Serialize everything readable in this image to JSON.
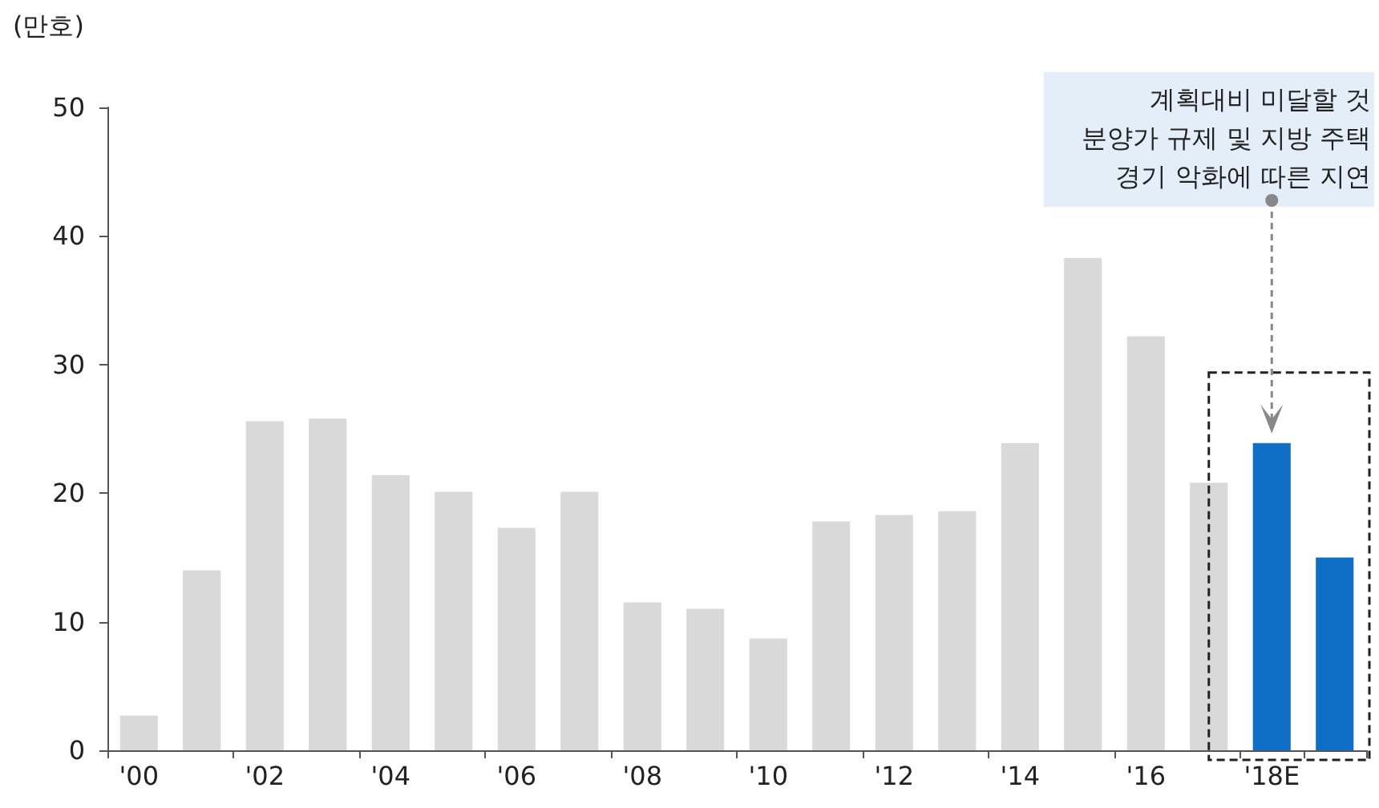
{
  "chart_data": {
    "type": "bar",
    "ylabel": "(만호)",
    "categories": [
      "'00",
      null,
      "'02",
      null,
      "'04",
      null,
      "'06",
      null,
      "'08",
      null,
      "'10",
      null,
      "'12",
      null,
      "'14",
      null,
      "'16",
      null,
      "'18E",
      null
    ],
    "values": [
      2.7,
      14.0,
      25.6,
      25.8,
      21.4,
      20.1,
      17.3,
      20.1,
      11.5,
      11.0,
      8.7,
      17.8,
      18.3,
      18.6,
      23.9,
      38.3,
      32.2,
      20.8,
      23.9,
      15.0
    ],
    "colors": [
      "#d9d9d9",
      "#d9d9d9",
      "#d9d9d9",
      "#d9d9d9",
      "#d9d9d9",
      "#d9d9d9",
      "#d9d9d9",
      "#d9d9d9",
      "#d9d9d9",
      "#d9d9d9",
      "#d9d9d9",
      "#d9d9d9",
      "#d9d9d9",
      "#d9d9d9",
      "#d9d9d9",
      "#d9d9d9",
      "#d9d9d9",
      "#d9d9d9",
      "#0f6fc6",
      "#0f6fc6"
    ],
    "ylim": [
      0,
      50
    ],
    "yticks": [
      0,
      10,
      20,
      30,
      40,
      50
    ],
    "annotations": [
      "계획대비 미달할 것\n분양가 규제 및 지방 주택\n경기 악화에 따른 지연"
    ]
  }
}
